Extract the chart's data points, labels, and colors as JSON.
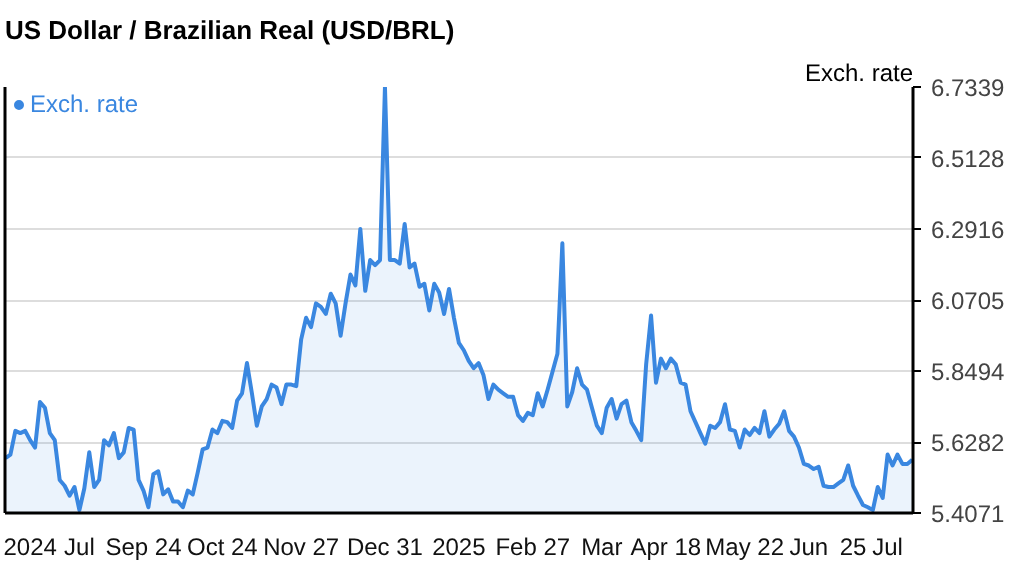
{
  "chart_data": {
    "type": "area",
    "title": "US Dollar / Brazilian Real (USD/BRL)",
    "ylabel": "Exch. rate",
    "legend": "top left",
    "grid": "y",
    "categories": [
      null,
      null,
      null,
      null,
      null,
      "2024",
      null,
      null,
      null,
      null,
      null,
      null,
      null,
      null,
      null,
      "Jul",
      null,
      null,
      null,
      null,
      null,
      null,
      null,
      null,
      null,
      null,
      null,
      null,
      "Sep 24",
      null,
      null,
      null,
      null,
      null,
      null,
      null,
      null,
      null,
      null,
      null,
      null,
      null,
      null,
      null,
      "Oct 24",
      null,
      null,
      null,
      null,
      null,
      null,
      null,
      null,
      null,
      null,
      null,
      null,
      null,
      null,
      null,
      "Nov 27",
      null,
      null,
      null,
      null,
      null,
      null,
      null,
      null,
      null,
      null,
      null,
      null,
      null,
      null,
      null,
      null,
      "Dec 31",
      null,
      null,
      null,
      null,
      null,
      null,
      null,
      null,
      null,
      null,
      null,
      null,
      null,
      null,
      "2025",
      null,
      null,
      null,
      null,
      null,
      null,
      null,
      null,
      null,
      null,
      null,
      null,
      null,
      null,
      "Feb 27",
      null,
      null,
      null,
      null,
      null,
      null,
      null,
      null,
      null,
      null,
      null,
      null,
      null,
      "Mar",
      null,
      null,
      null,
      null,
      null,
      null,
      null,
      null,
      null,
      null,
      null,
      null,
      "Apr 18",
      null,
      null,
      null,
      null,
      null,
      null,
      null,
      null,
      null,
      null,
      null,
      null,
      null,
      null,
      null,
      "May 22",
      null,
      null,
      null,
      null,
      null,
      null,
      null,
      null,
      null,
      null,
      null,
      null,
      "Jun",
      null,
      null,
      null,
      null,
      null,
      null,
      null,
      null,
      "25",
      null,
      null,
      null,
      null,
      null,
      null,
      "Jul",
      null,
      null,
      null,
      null,
      null
    ],
    "ylim": [
      5.4071,
      6.7339
    ],
    "yticks": [
      5.4071,
      5.6282,
      5.8494,
      6.0705,
      6.2916,
      6.5128,
      6.7339
    ],
    "series": [
      {
        "name": "Exch. rate",
        "color": "#3a87e0",
        "values": [
          5.578,
          5.589,
          5.663,
          5.656,
          5.663,
          5.634,
          5.611,
          5.753,
          5.735,
          5.656,
          5.634,
          5.51,
          5.492,
          5.461,
          5.488,
          5.416,
          5.484,
          5.596,
          5.488,
          5.51,
          5.634,
          5.618,
          5.656,
          5.578,
          5.596,
          5.672,
          5.667,
          5.51,
          5.477,
          5.425,
          5.528,
          5.537,
          5.465,
          5.481,
          5.443,
          5.443,
          5.425,
          5.477,
          5.465,
          5.533,
          5.605,
          5.611,
          5.667,
          5.656,
          5.694,
          5.69,
          5.672,
          5.757,
          5.78,
          5.874,
          5.78,
          5.679,
          5.739,
          5.762,
          5.807,
          5.798,
          5.746,
          5.807,
          5.807,
          5.802,
          5.948,
          6.015,
          5.986,
          6.06,
          6.049,
          6.027,
          6.09,
          6.06,
          5.959,
          6.06,
          6.15,
          6.116,
          6.292,
          6.099,
          6.195,
          6.179,
          6.195,
          6.7339,
          6.195,
          6.195,
          6.184,
          6.307,
          6.172,
          6.184,
          6.112,
          6.121,
          6.038,
          6.121,
          6.094,
          6.027,
          6.105,
          6.015,
          5.937,
          5.914,
          5.881,
          5.858,
          5.874,
          5.836,
          5.762,
          5.807,
          5.791,
          5.78,
          5.769,
          5.769,
          5.712,
          5.694,
          5.719,
          5.712,
          5.78,
          5.739,
          5.791,
          5.847,
          5.903,
          6.247,
          5.739,
          5.784,
          5.858,
          5.807,
          5.791,
          5.735,
          5.679,
          5.656,
          5.735,
          5.762,
          5.701,
          5.746,
          5.757,
          5.69,
          5.663,
          5.634,
          5.87,
          6.022,
          5.813,
          5.888,
          5.858,
          5.888,
          5.87,
          5.813,
          5.807,
          5.724,
          5.69,
          5.656,
          5.623,
          5.679,
          5.672,
          5.69,
          5.746,
          5.667,
          5.663,
          5.611,
          5.667,
          5.65,
          5.672,
          5.656,
          5.724,
          5.645,
          5.667,
          5.685,
          5.724,
          5.663,
          5.645,
          5.611,
          5.56,
          5.555,
          5.544,
          5.551,
          5.492,
          5.488,
          5.488,
          5.499,
          5.51,
          5.555,
          5.492,
          5.461,
          5.432,
          5.425,
          5.416,
          5.488,
          5.454,
          5.589,
          5.555,
          5.589,
          5.56,
          5.56,
          5.573
        ]
      }
    ]
  }
}
